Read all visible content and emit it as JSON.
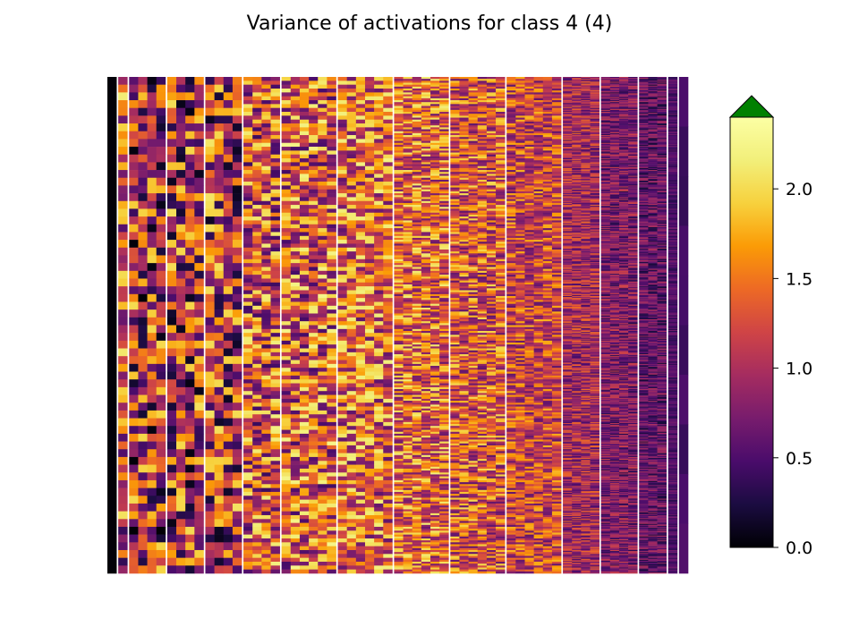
{
  "chart_data": {
    "type": "heatmap",
    "title": "Variance of activations for class 4 (4)",
    "xlabel": "",
    "ylabel": "",
    "axes_visible": false,
    "grid": false,
    "colormap": "inferno",
    "colorbar": {
      "position": "right",
      "vmin": 0.0,
      "vmax": 2.4,
      "extend": "max",
      "extend_color": "#008000",
      "ticks": [
        0.0,
        0.5,
        1.0,
        1.5,
        2.0
      ],
      "tick_labels": [
        "0.0",
        "0.5",
        "1.0",
        "1.5",
        "2.0"
      ]
    },
    "layers": [
      {
        "unit_count": 1,
        "rows": 1,
        "mean": 0.0,
        "spread": 0.05
      },
      {
        "unit_count": 1,
        "rows": 64,
        "mean": 1.25,
        "spread": 0.9
      },
      {
        "unit_count": 4,
        "rows": 64,
        "mean": 1.0,
        "spread": 1.0
      },
      {
        "unit_count": 4,
        "rows": 64,
        "mean": 1.05,
        "spread": 1.0
      },
      {
        "unit_count": 4,
        "rows": 64,
        "mean": 1.1,
        "spread": 1.0
      },
      {
        "unit_count": 4,
        "rows": 128,
        "mean": 1.3,
        "spread": 0.9
      },
      {
        "unit_count": 6,
        "rows": 128,
        "mean": 1.35,
        "spread": 0.9
      },
      {
        "unit_count": 6,
        "rows": 128,
        "mean": 1.4,
        "spread": 0.8
      },
      {
        "unit_count": 6,
        "rows": 256,
        "mean": 1.4,
        "spread": 0.75
      },
      {
        "unit_count": 6,
        "rows": 256,
        "mean": 1.3,
        "spread": 0.7
      },
      {
        "unit_count": 6,
        "rows": 256,
        "mean": 1.2,
        "spread": 0.6
      },
      {
        "unit_count": 4,
        "rows": 512,
        "mean": 0.95,
        "spread": 0.5
      },
      {
        "unit_count": 4,
        "rows": 512,
        "mean": 0.75,
        "spread": 0.45
      },
      {
        "unit_count": 3,
        "rows": 512,
        "mean": 0.6,
        "spread": 0.4
      },
      {
        "unit_count": 1,
        "rows": 512,
        "mean": 0.5,
        "spread": 0.2
      },
      {
        "unit_count": 1,
        "rows": 10,
        "mean": 0.45,
        "spread": 0.12
      }
    ]
  }
}
